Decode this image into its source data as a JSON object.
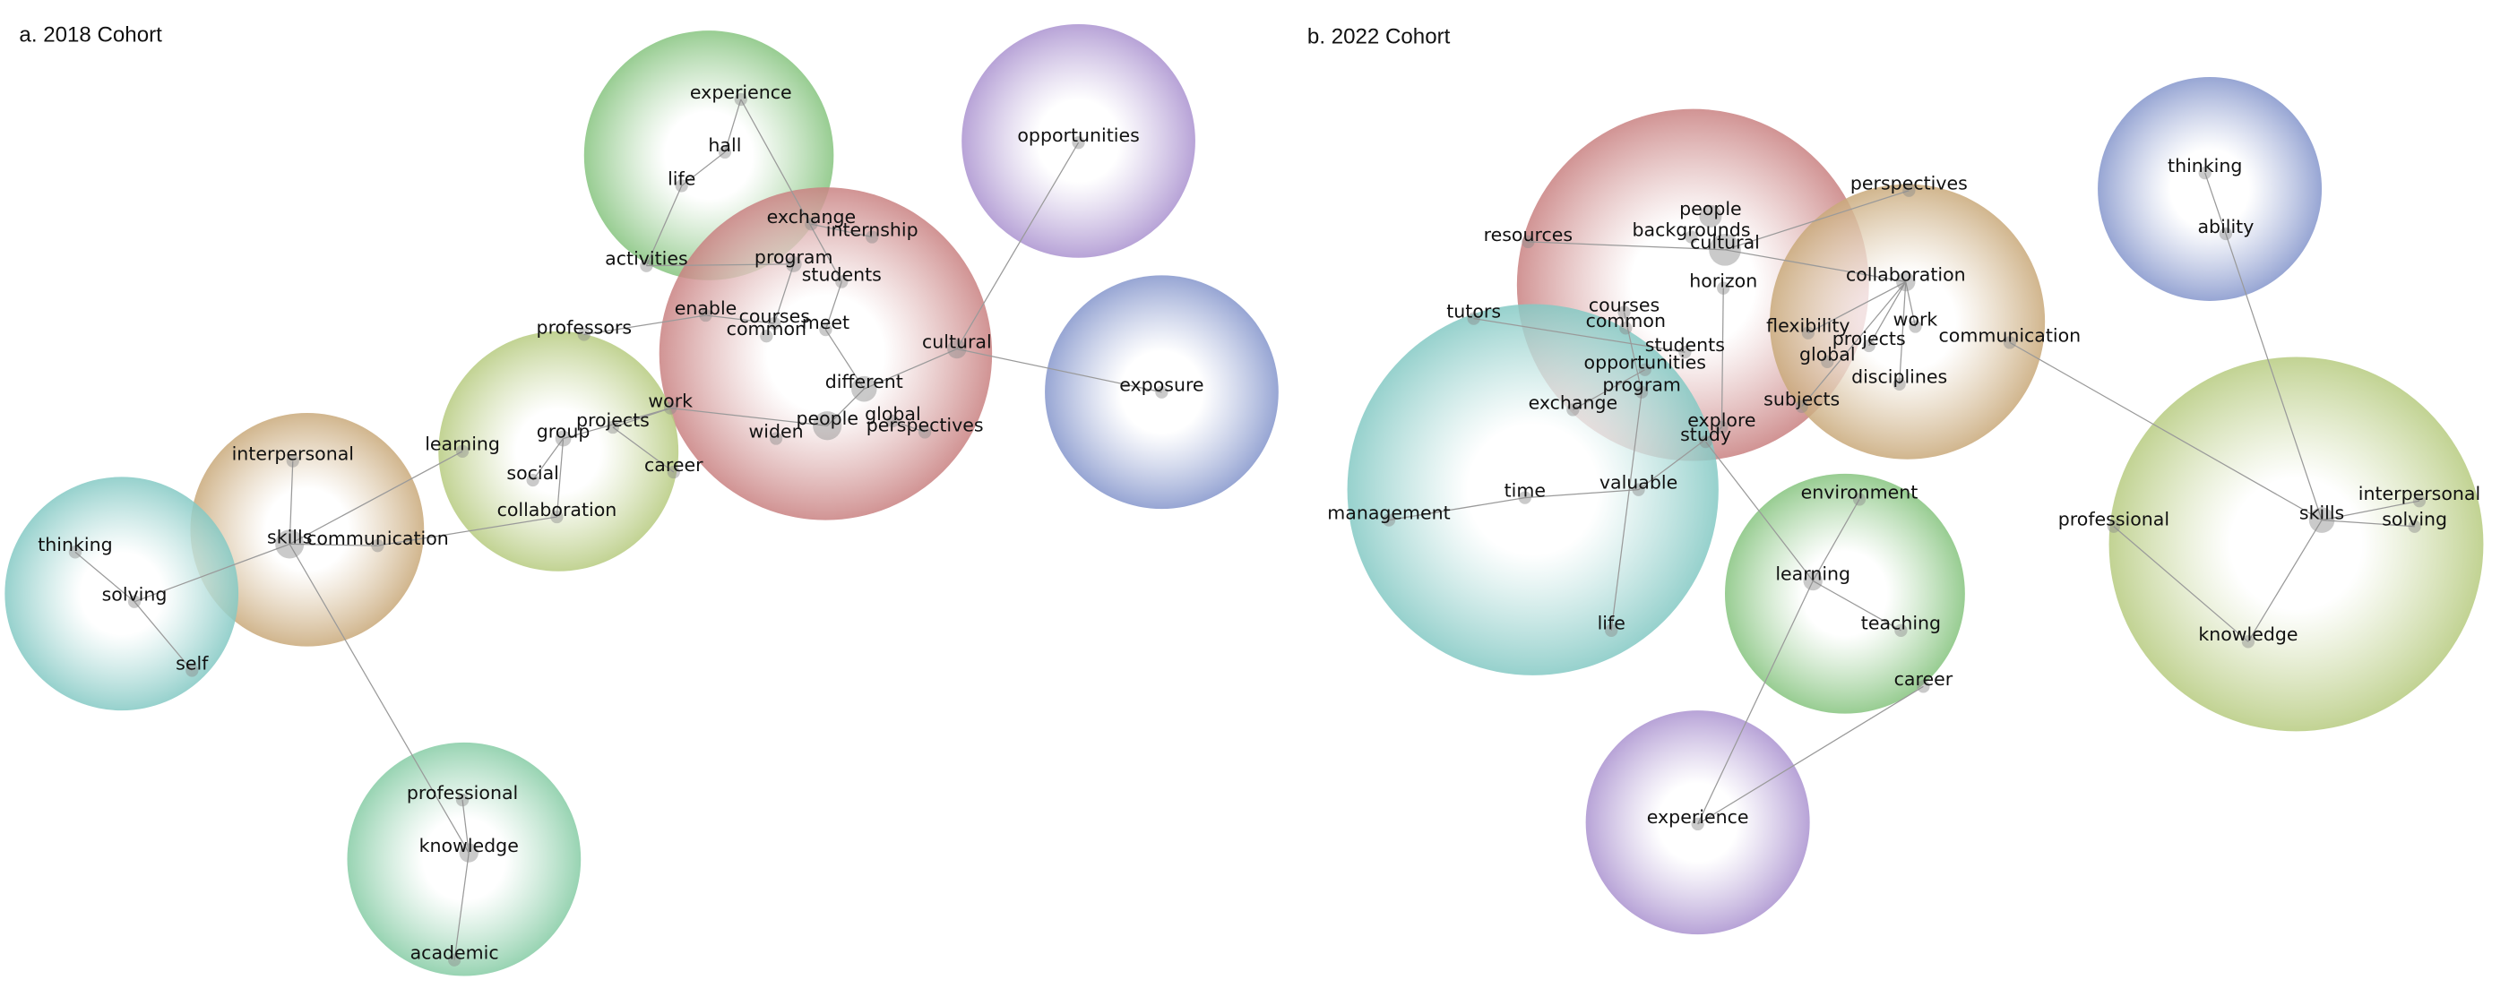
{
  "panels": [
    {
      "title": "a. 2018 Cohort",
      "nodes": [
        "experience",
        "hall",
        "life",
        "activities",
        "exchange",
        "internship",
        "program",
        "students",
        "enable",
        "courses",
        "common",
        "meet",
        "professors",
        "cultural",
        "opportunities",
        "exposure",
        "different",
        "global",
        "perspectives",
        "people",
        "widen",
        "work",
        "group",
        "projects",
        "career",
        "social",
        "collaboration",
        "learning",
        "interpersonal",
        "skills",
        "communication",
        "thinking",
        "solving",
        "self",
        "professional",
        "knowledge",
        "academic"
      ]
    },
    {
      "title": "b. 2022 Cohort",
      "nodes": [
        "perspectives",
        "people",
        "backgrounds",
        "cultural",
        "resources",
        "horizon",
        "collaboration",
        "courses",
        "common",
        "tutors",
        "flexibility",
        "work",
        "projects",
        "global",
        "communication",
        "students",
        "opportunities",
        "program",
        "disciplines",
        "exchange",
        "subjects",
        "explore",
        "study",
        "valuable",
        "time",
        "management",
        "life",
        "environment",
        "learning",
        "teaching",
        "career",
        "experience",
        "thinking",
        "ability",
        "professional",
        "skills",
        "interpersonal",
        "solving",
        "knowledge"
      ]
    }
  ]
}
